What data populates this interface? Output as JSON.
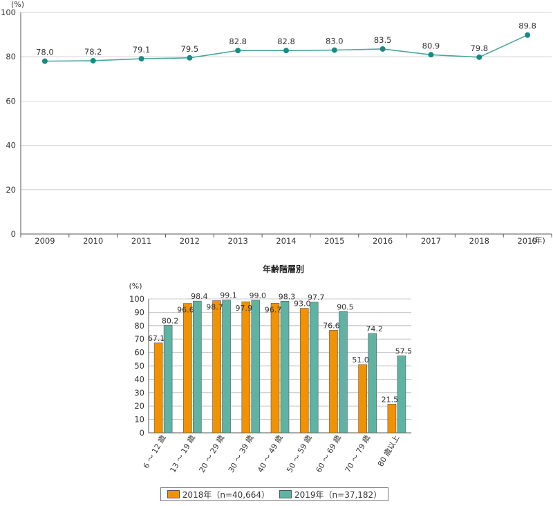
{
  "chart_data": [
    {
      "type": "line",
      "y_unit": "(%)",
      "x_unit": "(年)",
      "x": [
        "2009",
        "2010",
        "2011",
        "2012",
        "2013",
        "2014",
        "2015",
        "2016",
        "2017",
        "2018",
        "2019"
      ],
      "series": [
        {
          "values": [
            78.0,
            78.2,
            79.1,
            79.5,
            82.8,
            82.8,
            83.0,
            83.5,
            80.9,
            79.8,
            89.8
          ],
          "labels": [
            "78.0",
            "78.2",
            "79.1",
            "79.5",
            "82.8",
            "82.8",
            "83.0",
            "83.5",
            "80.9",
            "79.8",
            "89.8"
          ],
          "color": "#4aa79b"
        }
      ],
      "ylim": [
        0,
        100
      ],
      "yticks": [
        "0",
        "20",
        "40",
        "60",
        "80",
        "100"
      ],
      "grid": true
    },
    {
      "type": "bar",
      "title": "年齢階層別",
      "y_unit": "(%)",
      "categories": [
        "6 ～ 12 歳",
        "13 ～ 19 歳",
        "20 ～ 29 歳",
        "30 ～ 39 歳",
        "40 ～ 49 歳",
        "50 ～ 59 歳",
        "60 ～ 69 歳",
        "70 ～ 79 歳",
        "80 歳以上"
      ],
      "series": [
        {
          "name": "2018年（n=40,664）",
          "color": "#f39200",
          "values": [
            67.1,
            96.6,
            98.7,
            97.9,
            96.7,
            93.0,
            76.6,
            51.0,
            21.5
          ],
          "labels": [
            "67.1",
            "96.6",
            "98.7",
            "97.9",
            "96.7",
            "93.0",
            "76.6",
            "51.0",
            "21.5"
          ]
        },
        {
          "name": "2019年（n=37,182）",
          "color": "#5fb3a3",
          "values": [
            80.2,
            98.4,
            99.1,
            99.0,
            98.3,
            97.7,
            90.5,
            74.2,
            57.5
          ],
          "labels": [
            "80.2",
            "98.4",
            "99.1",
            "99.0",
            "98.3",
            "97.7",
            "90.5",
            "74.2",
            "57.5"
          ]
        }
      ],
      "ylim": [
        0,
        100
      ],
      "yticks": [
        "0",
        "10",
        "20",
        "30",
        "40",
        "50",
        "60",
        "70",
        "80",
        "90",
        "100"
      ],
      "grid": true,
      "legend": "bottom"
    }
  ]
}
